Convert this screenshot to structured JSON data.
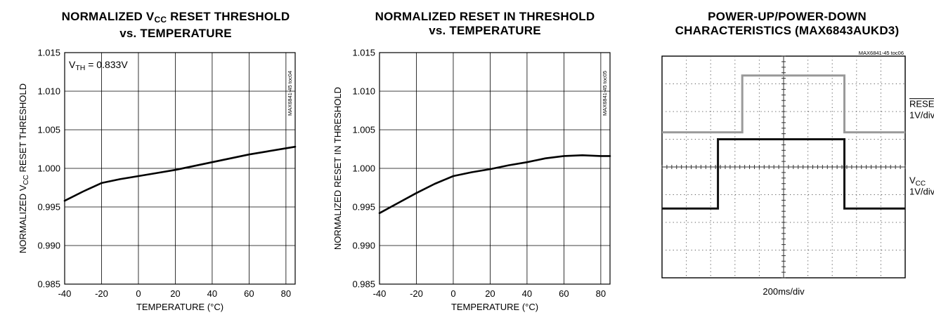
{
  "chart_data": [
    {
      "type": "line",
      "title": [
        "NORMALIZED V",
        "CC",
        " RESET THRESHOLD",
        "vs. TEMPERATURE"
      ],
      "xlabel": "TEMPERATURE (°C)",
      "ylabel": [
        "NORMALIZED V",
        "CC",
        " RESET THRESHOLD"
      ],
      "side_label": "MAX6841-45 toc04",
      "annotation": [
        "V",
        "TH",
        " = 0.833V"
      ],
      "xlim": [
        -40,
        85
      ],
      "ylim": [
        0.985,
        1.015
      ],
      "xticks": [
        "-40",
        "-20",
        "0",
        "20",
        "40",
        "60",
        "80"
      ],
      "yticks": [
        "1.015",
        "1.010",
        "1.005",
        "1.000",
        "0.995",
        "0.990",
        "0.985"
      ],
      "grid": true,
      "series": [
        {
          "x": [
            -40,
            -30,
            -20,
            -10,
            0,
            10,
            20,
            30,
            40,
            50,
            60,
            70,
            85
          ],
          "y": [
            0.9958,
            0.997,
            0.9981,
            0.9986,
            0.999,
            0.9994,
            0.9998,
            1.0003,
            1.0008,
            1.0013,
            1.0018,
            1.0022,
            1.0028
          ]
        }
      ]
    },
    {
      "type": "line",
      "title": [
        "NORMALIZED RESET IN THRESHOLD",
        "vs. TEMPERATURE"
      ],
      "xlabel": "TEMPERATURE (°C)",
      "ylabel": "NORMALIZED RESET IN THRESHOLD",
      "side_label": "MAX6841-45 toc05",
      "xlim": [
        -40,
        85
      ],
      "ylim": [
        0.985,
        1.015
      ],
      "xticks": [
        "-40",
        "-20",
        "0",
        "20",
        "40",
        "60",
        "80"
      ],
      "yticks": [
        "1.015",
        "1.010",
        "1.005",
        "1.000",
        "0.995",
        "0.990",
        "0.985"
      ],
      "grid": true,
      "series": [
        {
          "x": [
            -40,
            -30,
            -20,
            -10,
            0,
            10,
            20,
            30,
            40,
            50,
            60,
            70,
            80,
            85
          ],
          "y": [
            0.9942,
            0.9955,
            0.9968,
            0.998,
            0.999,
            0.9995,
            0.9999,
            1.0004,
            1.0008,
            1.0013,
            1.0016,
            1.0017,
            1.0016,
            1.0016
          ]
        }
      ]
    },
    {
      "type": "scope",
      "title": [
        "POWER-UP/POWER-DOWN",
        "CHARACTERISTICS (MAX6843AUKD3)"
      ],
      "side_label": "MAX6841-45 toc06",
      "xlabel": "200ms/div",
      "divisions": {
        "x": 10,
        "y": 8
      },
      "channels": [
        {
          "name": [
            "V",
            "CC"
          ],
          "scale": "1V/div",
          "color": "#111111",
          "low_div": 5.5,
          "high_div": 3.0,
          "rise_div": 2.3,
          "fall_div": 7.5
        },
        {
          "name": "RESET",
          "overline": true,
          "scale": "1V/div",
          "color": "#9a9a9a",
          "low_div": 2.75,
          "high_div": 0.7,
          "rise_div": 3.3,
          "fall_div": 7.5
        }
      ]
    }
  ]
}
